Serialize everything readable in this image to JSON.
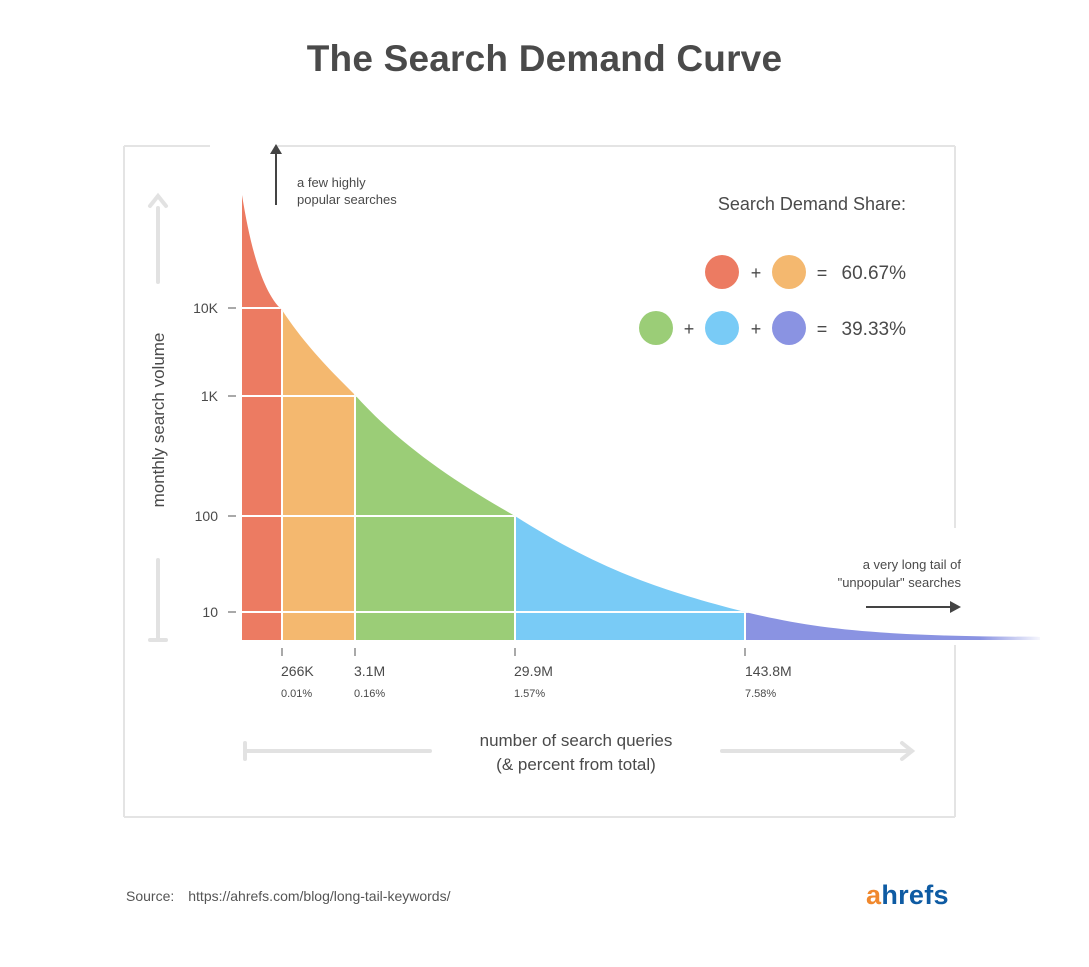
{
  "title": "The Search Demand Curve",
  "annotations": {
    "top_line1": "a few highly",
    "top_line2": "popular searches",
    "tail_line1": "a very long tail of",
    "tail_line2": "\"unpopular\" searches"
  },
  "legend": {
    "title": "Search Demand Share:",
    "plus": "+",
    "equals": "=",
    "row1_value": "60.67%",
    "row2_value": "39.33%"
  },
  "source": {
    "label": "Source:",
    "url": "https://ahrefs.com/blog/long-tail-keywords/"
  },
  "logo": {
    "a": "a",
    "rest": "hrefs"
  },
  "colors": {
    "red": "#ec7b62",
    "orange": "#f4b86f",
    "green": "#9bcd77",
    "blue": "#79cbf6",
    "purple": "#8a93e2",
    "text": "#4a4a4a",
    "frame": "#e4e4e4",
    "grid": "#ffffff"
  },
  "chart_data": {
    "type": "area",
    "title": "The Search Demand Curve",
    "ylabel": "monthly search volume",
    "xlabel_line1": "number of search queries",
    "xlabel_line2": "(& percent from total)",
    "y_scale": "log",
    "y_ticks": [
      {
        "label": "10K",
        "value": 10000
      },
      {
        "label": "1K",
        "value": 1000
      },
      {
        "label": "100",
        "value": 100
      },
      {
        "label": "10",
        "value": 10
      }
    ],
    "x_ticks": [
      {
        "label": "266K",
        "pct": "0.01%"
      },
      {
        "label": "3.1M",
        "pct": "0.16%"
      },
      {
        "label": "29.9M",
        "pct": "1.57%"
      },
      {
        "label": "143.8M",
        "pct": "7.58%"
      }
    ],
    "segments": [
      {
        "color": "#ec7b62",
        "from_volume": "10K+"
      },
      {
        "color": "#f4b86f",
        "from_volume": "1K–10K"
      },
      {
        "color": "#9bcd77",
        "from_volume": "100–1K"
      },
      {
        "color": "#79cbf6",
        "from_volume": "10–100"
      },
      {
        "color": "#8a93e2",
        "from_volume": "<10"
      }
    ],
    "share": [
      {
        "colors": [
          "#ec7b62",
          "#f4b86f"
        ],
        "value": "60.67%"
      },
      {
        "colors": [
          "#9bcd77",
          "#79cbf6",
          "#8a93e2"
        ],
        "value": "39.33%"
      }
    ],
    "grid": true
  }
}
